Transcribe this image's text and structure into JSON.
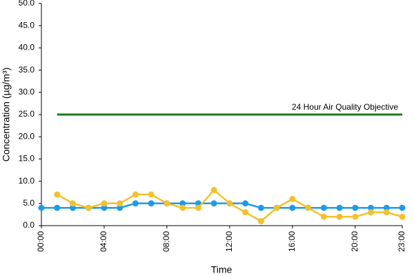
{
  "chart_data": {
    "type": "line",
    "x_label": "Time",
    "y_label": "Concentration (µg/m³)",
    "categories": [
      "00:00",
      null,
      null,
      null,
      "04:00",
      null,
      null,
      null,
      "08:00",
      null,
      null,
      null,
      "12:00",
      null,
      null,
      null,
      "16:00",
      null,
      null,
      null,
      "20:00",
      null,
      null,
      "23:00"
    ],
    "series": [
      {
        "color": "#1e9be8",
        "values": [
          4,
          4,
          4,
          4,
          4,
          4,
          5,
          5,
          5,
          5,
          5,
          5,
          5,
          5,
          4,
          4,
          4,
          4,
          4,
          4,
          4,
          4,
          4,
          4
        ]
      },
      {
        "color": "#f2c12e",
        "values": [
          null,
          7,
          5,
          4,
          5,
          5,
          7,
          7,
          5,
          4,
          4,
          8,
          5,
          3,
          1,
          4,
          6,
          4,
          2,
          2,
          2,
          3,
          3,
          2
        ]
      },
      {
        "name": "24 Hour Air Quality Objective",
        "color": "#1a7a1a",
        "values": [
          null,
          25,
          25,
          25,
          25,
          25,
          25,
          25,
          25,
          25,
          25,
          25,
          25,
          25,
          25,
          25,
          25,
          25,
          25,
          25,
          25,
          25,
          25,
          25
        ]
      }
    ],
    "ylim": [
      0,
      50
    ],
    "yticks": [
      {
        "value": 0,
        "label": "0.0"
      },
      {
        "value": 5,
        "label": "5.0"
      },
      {
        "value": 10,
        "label": "10.0"
      },
      {
        "value": 15,
        "label": "15.0"
      },
      {
        "value": 20,
        "label": "20.0"
      },
      {
        "value": 25,
        "label": "25.0"
      },
      {
        "value": 30,
        "label": "30.0"
      },
      {
        "value": 35,
        "label": "35.0"
      },
      {
        "value": 40,
        "label": "40.0"
      },
      {
        "value": 45,
        "label": "45.0"
      },
      {
        "value": 50,
        "label": "50.0"
      }
    ],
    "grid": false
  }
}
